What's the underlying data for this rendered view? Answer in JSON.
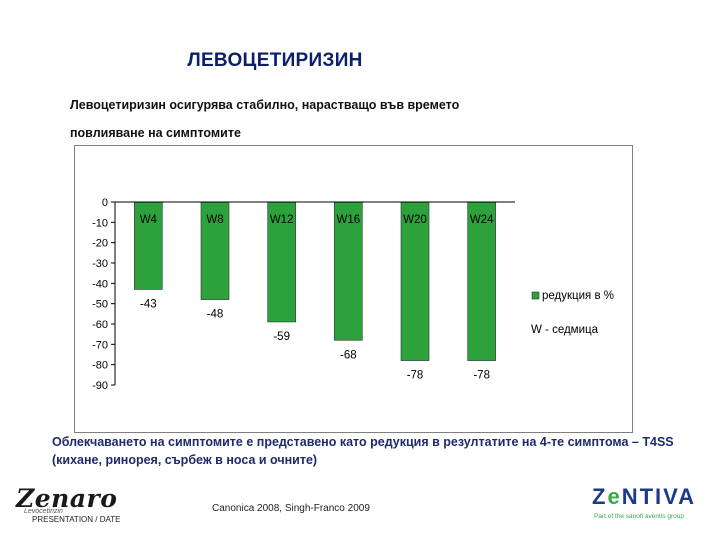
{
  "header": {
    "title": "ЛЕВОЦЕТИРИЗИН",
    "subtitle_line1": "Левоцетиризин осигурява стабилно, нарастващо във времето",
    "subtitle_line2": "повлияване на симптомите"
  },
  "chart_data": {
    "type": "bar",
    "categories": [
      "W4",
      "W8",
      "W12",
      "W16",
      "W20",
      "W24"
    ],
    "series": [
      {
        "name": "редукция в %",
        "values": [
          -43,
          -48,
          -59,
          -68,
          -78,
          -78
        ]
      }
    ],
    "value_labels": [
      "-43",
      "-48",
      "-59",
      "-68",
      "-78",
      "-78"
    ],
    "ylim": [
      -90,
      0
    ],
    "yticks": [
      0,
      -10,
      -20,
      -30,
      -40,
      -50,
      -60,
      -70,
      -80,
      -90
    ],
    "ytick_labels": [
      "0",
      "-10",
      "-20",
      "-30",
      "-40",
      "-50",
      "-60",
      "-70",
      "-80",
      "-90"
    ],
    "legend_label": "редукция в %",
    "legend_note": "W - седмица",
    "legend_position": "right",
    "bar_color": "#2ca13c",
    "grid": false
  },
  "footer": {
    "note": "Облекчаването на симптомите е представено като редукция в резултатите на 4-те симптома – T4SS (кихане, ринорея, сърбеж в носа и очните)",
    "citation": "Canonica 2008, Singh-Franco 2009",
    "left_logo": "Zenaro",
    "left_logo_sub": "Levocetirizin",
    "presentation_label": "PRESENTATION / DATE",
    "right_logo_z": "Z",
    "right_logo_e": "e",
    "right_logo_rest": "NTIVA",
    "right_logo_tagline": "Part of the sanofi aventis group"
  }
}
